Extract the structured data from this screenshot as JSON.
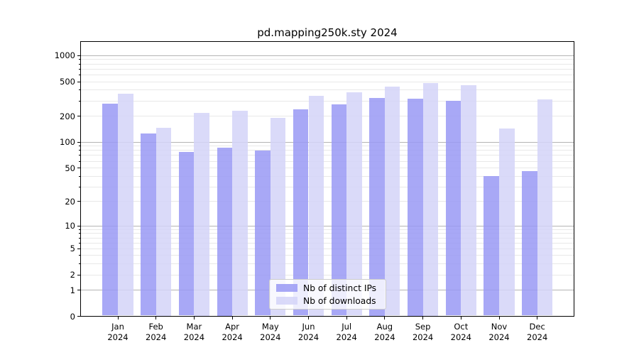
{
  "title": "pd.mapping250k.sty 2024",
  "chart_data": {
    "type": "bar",
    "title": "pd.mapping250k.sty 2024",
    "categories": [
      "Jan",
      "Feb",
      "Mar",
      "Apr",
      "May",
      "Jun",
      "Jul",
      "Aug",
      "Sep",
      "Oct",
      "Nov",
      "Dec"
    ],
    "category_year": "2024",
    "series": [
      {
        "name": "Nb of distinct IPs",
        "color": "#9999f4",
        "alpha": 0.85,
        "values": [
          280,
          125,
          77,
          87,
          80,
          238,
          273,
          324,
          318,
          300,
          40,
          46
        ]
      },
      {
        "name": "Nb of downloads",
        "color": "#d3d3f8",
        "alpha": 0.85,
        "values": [
          365,
          148,
          220,
          230,
          192,
          343,
          378,
          442,
          486,
          456,
          145,
          313
        ]
      }
    ],
    "yscale": "log1p",
    "ylim": [
      0,
      1464
    ],
    "yticks": [
      0,
      1,
      2,
      5,
      10,
      20,
      50,
      100,
      200,
      500,
      1000
    ],
    "grid": {
      "major_values": [
        1,
        10,
        100,
        1000
      ],
      "minor_values": [
        2,
        3,
        4,
        5,
        6,
        7,
        8,
        9,
        20,
        30,
        40,
        50,
        60,
        70,
        80,
        90,
        200,
        300,
        400,
        500,
        600,
        700,
        800,
        900
      ],
      "major_color": "#b4b4b4",
      "minor_color": "#e8e8e8"
    },
    "legend_position": "lower center",
    "xlabel": "",
    "ylabel": ""
  }
}
